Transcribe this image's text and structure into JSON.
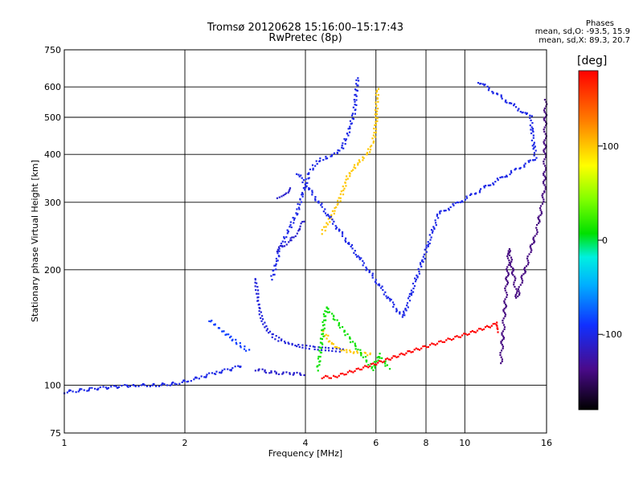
{
  "header": {
    "title": "Tromsø 20120628 15:16:00–15:17:43",
    "subtitle": "RwPretec (8p)"
  },
  "phases_box": {
    "heading": "Phases",
    "line_o": "mean, sd,O: -93.5, 15.9",
    "line_x": "mean, sd,X: 89.3, 20.7"
  },
  "colorbar": {
    "label": "[deg]",
    "range": [
      -180,
      180
    ],
    "ticks": [
      100,
      0,
      -100
    ],
    "tick_labels": [
      "100",
      "0",
      "-100"
    ]
  },
  "chart_data": {
    "type": "scatter",
    "title": "Tromsø 20120628 15:16:00–15:17:43",
    "subtitle": "RwPretec (8p)",
    "xlabel": "Frequency [MHz]",
    "ylabel": "Stationary phase Virtual Height [km]",
    "xscale": "log",
    "yscale": "log",
    "xlim": [
      1,
      16
    ],
    "ylim": [
      75,
      750
    ],
    "xticks": [
      1,
      2,
      4,
      6,
      8,
      10,
      16
    ],
    "xtick_labels": [
      "1",
      "2",
      "4",
      "6",
      "8",
      "10",
      "16"
    ],
    "yticks": [
      75,
      100,
      200,
      300,
      400,
      500,
      600,
      750
    ],
    "ytick_labels": [
      "75",
      "100",
      "200",
      "300",
      "400",
      "500",
      "600",
      "750"
    ],
    "grid": true,
    "color_variable": "phase [deg]",
    "traces": [
      {
        "phase": -100,
        "points": [
          [
            1.0,
            96
          ],
          [
            1.1,
            97
          ],
          [
            1.2,
            98
          ],
          [
            1.35,
            99
          ],
          [
            1.5,
            100
          ],
          [
            1.7,
            100
          ],
          [
            1.9,
            101
          ],
          [
            2.05,
            103
          ],
          [
            2.2,
            105
          ],
          [
            2.4,
            108
          ],
          [
            2.6,
            110
          ],
          [
            2.8,
            113
          ]
        ]
      },
      {
        "phase": -85,
        "points": [
          [
            2.3,
            148
          ],
          [
            2.45,
            140
          ],
          [
            2.6,
            133
          ],
          [
            2.75,
            127
          ],
          [
            2.9,
            122
          ]
        ]
      },
      {
        "phase": -105,
        "points": [
          [
            3.0,
            190
          ],
          [
            3.05,
            165
          ],
          [
            3.1,
            150
          ],
          [
            3.2,
            140
          ],
          [
            3.3,
            135
          ],
          [
            3.5,
            130
          ],
          [
            3.8,
            127
          ],
          [
            4.2,
            125
          ],
          [
            4.6,
            124
          ],
          [
            5.0,
            123
          ]
        ]
      },
      {
        "phase": -100,
        "points": [
          [
            3.3,
            190
          ],
          [
            3.45,
            225
          ],
          [
            3.6,
            250
          ],
          [
            3.8,
            280
          ],
          [
            3.95,
            320
          ],
          [
            4.1,
            360
          ],
          [
            4.3,
            385
          ],
          [
            4.6,
            395
          ],
          [
            4.9,
            410
          ],
          [
            5.1,
            450
          ],
          [
            5.3,
            520
          ],
          [
            5.4,
            640
          ]
        ]
      },
      {
        "phase": -110,
        "points": [
          [
            3.4,
            225
          ],
          [
            3.7,
            240
          ],
          [
            4.0,
            270
          ]
        ]
      },
      {
        "phase": -110,
        "points": [
          [
            3.4,
            310
          ],
          [
            3.6,
            320
          ],
          [
            3.7,
            330
          ]
        ]
      },
      {
        "phase": -110,
        "points": [
          [
            3.0,
            110
          ],
          [
            3.3,
            108
          ],
          [
            3.7,
            107
          ],
          [
            4.0,
            107
          ]
        ]
      },
      {
        "phase": 100,
        "points": [
          [
            4.4,
            140
          ],
          [
            4.6,
            130
          ],
          [
            4.8,
            125
          ],
          [
            5.0,
            123
          ],
          [
            5.3,
            122
          ],
          [
            5.6,
            121
          ],
          [
            5.9,
            120
          ]
        ]
      },
      {
        "phase": 100,
        "points": [
          [
            4.4,
            250
          ],
          [
            4.6,
            270
          ],
          [
            4.9,
            310
          ],
          [
            5.1,
            350
          ],
          [
            5.4,
            380
          ],
          [
            5.7,
            400
          ],
          [
            5.9,
            430
          ],
          [
            6.0,
            480
          ],
          [
            6.05,
            600
          ]
        ]
      },
      {
        "phase": 10,
        "points": [
          [
            4.3,
            110
          ],
          [
            4.5,
            160
          ],
          [
            5.9,
            110
          ],
          [
            6.1,
            120
          ],
          [
            6.5,
            110
          ]
        ]
      },
      {
        "phase": 180,
        "points": [
          [
            4.4,
            105
          ],
          [
            4.7,
            105
          ],
          [
            12.1,
            145
          ],
          [
            12.2,
            136
          ]
        ]
      },
      {
        "phase": -140,
        "points": [
          [
            12.3,
            115
          ],
          [
            12.9,
            225
          ],
          [
            13.5,
            170
          ],
          [
            15.2,
            260
          ],
          [
            15.8,
            320
          ],
          [
            15.9,
            560
          ]
        ]
      },
      {
        "phase": -100,
        "points": [
          [
            10.8,
            620
          ],
          [
            14.6,
            500
          ],
          [
            15.0,
            390
          ],
          [
            8.6,
            280
          ],
          [
            7.0,
            150
          ],
          [
            3.8,
            360
          ]
        ]
      }
    ]
  }
}
